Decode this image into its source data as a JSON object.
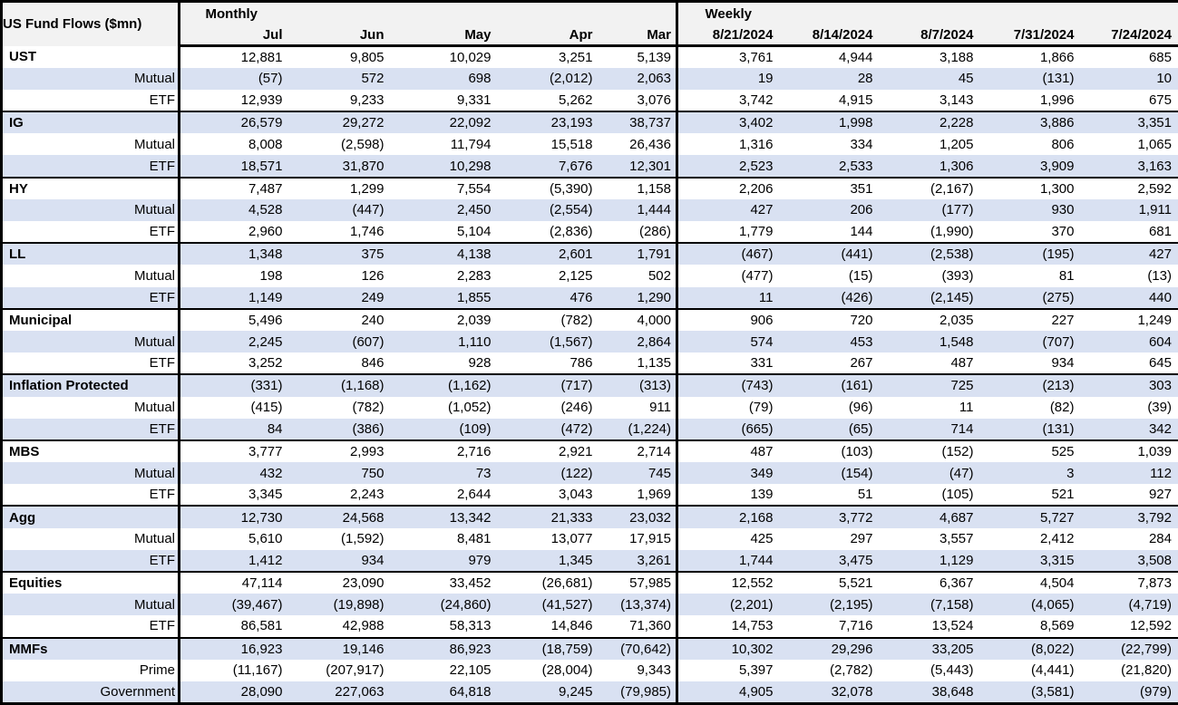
{
  "colors": {
    "row_alt": "#d9e1f2",
    "header_bg": "#f2f2f2",
    "border": "#000000",
    "text": "#000000"
  },
  "chart_data": {
    "type": "table",
    "title": "US Fund Flows ($mn)",
    "column_groups": [
      {
        "label": "Monthly",
        "columns": [
          "Jul",
          "Jun",
          "May",
          "Apr",
          "Mar"
        ]
      },
      {
        "label": "Weekly",
        "columns": [
          "8/21/2024",
          "8/14/2024",
          "8/7/2024",
          "7/31/2024",
          "7/24/2024"
        ]
      }
    ],
    "rows": [
      {
        "label": "UST",
        "level": "group",
        "values": [
          "12,881",
          "9,805",
          "10,029",
          "3,251",
          "5,139",
          "3,761",
          "4,944",
          "3,188",
          "1,866",
          "685"
        ]
      },
      {
        "label": "Mutual",
        "level": "sub",
        "values": [
          "(57)",
          "572",
          "698",
          "(2,012)",
          "2,063",
          "19",
          "28",
          "45",
          "(131)",
          "10"
        ]
      },
      {
        "label": "ETF",
        "level": "sub",
        "values": [
          "12,939",
          "9,233",
          "9,331",
          "5,262",
          "3,076",
          "3,742",
          "4,915",
          "3,143",
          "1,996",
          "675"
        ]
      },
      {
        "label": "IG",
        "level": "group",
        "values": [
          "26,579",
          "29,272",
          "22,092",
          "23,193",
          "38,737",
          "3,402",
          "1,998",
          "2,228",
          "3,886",
          "3,351"
        ]
      },
      {
        "label": "Mutual",
        "level": "sub",
        "values": [
          "8,008",
          "(2,598)",
          "11,794",
          "15,518",
          "26,436",
          "1,316",
          "334",
          "1,205",
          "806",
          "1,065"
        ]
      },
      {
        "label": "ETF",
        "level": "sub",
        "values": [
          "18,571",
          "31,870",
          "10,298",
          "7,676",
          "12,301",
          "2,523",
          "2,533",
          "1,306",
          "3,909",
          "3,163"
        ]
      },
      {
        "label": "HY",
        "level": "group",
        "values": [
          "7,487",
          "1,299",
          "7,554",
          "(5,390)",
          "1,158",
          "2,206",
          "351",
          "(2,167)",
          "1,300",
          "2,592"
        ]
      },
      {
        "label": "Mutual",
        "level": "sub",
        "values": [
          "4,528",
          "(447)",
          "2,450",
          "(2,554)",
          "1,444",
          "427",
          "206",
          "(177)",
          "930",
          "1,911"
        ]
      },
      {
        "label": "ETF",
        "level": "sub",
        "values": [
          "2,960",
          "1,746",
          "5,104",
          "(2,836)",
          "(286)",
          "1,779",
          "144",
          "(1,990)",
          "370",
          "681"
        ]
      },
      {
        "label": "LL",
        "level": "group",
        "values": [
          "1,348",
          "375",
          "4,138",
          "2,601",
          "1,791",
          "(467)",
          "(441)",
          "(2,538)",
          "(195)",
          "427"
        ]
      },
      {
        "label": "Mutual",
        "level": "sub",
        "values": [
          "198",
          "126",
          "2,283",
          "2,125",
          "502",
          "(477)",
          "(15)",
          "(393)",
          "81",
          "(13)"
        ]
      },
      {
        "label": "ETF",
        "level": "sub",
        "values": [
          "1,149",
          "249",
          "1,855",
          "476",
          "1,290",
          "11",
          "(426)",
          "(2,145)",
          "(275)",
          "440"
        ]
      },
      {
        "label": "Municipal",
        "level": "group",
        "values": [
          "5,496",
          "240",
          "2,039",
          "(782)",
          "4,000",
          "906",
          "720",
          "2,035",
          "227",
          "1,249"
        ]
      },
      {
        "label": "Mutual",
        "level": "sub",
        "values": [
          "2,245",
          "(607)",
          "1,110",
          "(1,567)",
          "2,864",
          "574",
          "453",
          "1,548",
          "(707)",
          "604"
        ]
      },
      {
        "label": "ETF",
        "level": "sub",
        "values": [
          "3,252",
          "846",
          "928",
          "786",
          "1,135",
          "331",
          "267",
          "487",
          "934",
          "645"
        ]
      },
      {
        "label": "Inflation Protected",
        "level": "group",
        "values": [
          "(331)",
          "(1,168)",
          "(1,162)",
          "(717)",
          "(313)",
          "(743)",
          "(161)",
          "725",
          "(213)",
          "303"
        ]
      },
      {
        "label": "Mutual",
        "level": "sub",
        "values": [
          "(415)",
          "(782)",
          "(1,052)",
          "(246)",
          "911",
          "(79)",
          "(96)",
          "11",
          "(82)",
          "(39)"
        ]
      },
      {
        "label": "ETF",
        "level": "sub",
        "values": [
          "84",
          "(386)",
          "(109)",
          "(472)",
          "(1,224)",
          "(665)",
          "(65)",
          "714",
          "(131)",
          "342"
        ]
      },
      {
        "label": "MBS",
        "level": "group",
        "values": [
          "3,777",
          "2,993",
          "2,716",
          "2,921",
          "2,714",
          "487",
          "(103)",
          "(152)",
          "525",
          "1,039"
        ]
      },
      {
        "label": "Mutual",
        "level": "sub",
        "values": [
          "432",
          "750",
          "73",
          "(122)",
          "745",
          "349",
          "(154)",
          "(47)",
          "3",
          "112"
        ]
      },
      {
        "label": "ETF",
        "level": "sub",
        "values": [
          "3,345",
          "2,243",
          "2,644",
          "3,043",
          "1,969",
          "139",
          "51",
          "(105)",
          "521",
          "927"
        ]
      },
      {
        "label": "Agg",
        "level": "group",
        "values": [
          "12,730",
          "24,568",
          "13,342",
          "21,333",
          "23,032",
          "2,168",
          "3,772",
          "4,687",
          "5,727",
          "3,792"
        ]
      },
      {
        "label": "Mutual",
        "level": "sub",
        "values": [
          "5,610",
          "(1,592)",
          "8,481",
          "13,077",
          "17,915",
          "425",
          "297",
          "3,557",
          "2,412",
          "284"
        ]
      },
      {
        "label": "ETF",
        "level": "sub",
        "values": [
          "1,412",
          "934",
          "979",
          "1,345",
          "3,261",
          "1,744",
          "3,475",
          "1,129",
          "3,315",
          "3,508"
        ]
      },
      {
        "label": "Equities",
        "level": "group",
        "values": [
          "47,114",
          "23,090",
          "33,452",
          "(26,681)",
          "57,985",
          "12,552",
          "5,521",
          "6,367",
          "4,504",
          "7,873"
        ]
      },
      {
        "label": "Mutual",
        "level": "sub",
        "values": [
          "(39,467)",
          "(19,898)",
          "(24,860)",
          "(41,527)",
          "(13,374)",
          "(2,201)",
          "(2,195)",
          "(7,158)",
          "(4,065)",
          "(4,719)"
        ]
      },
      {
        "label": "ETF",
        "level": "sub",
        "values": [
          "86,581",
          "42,988",
          "58,313",
          "14,846",
          "71,360",
          "14,753",
          "7,716",
          "13,524",
          "8,569",
          "12,592"
        ]
      },
      {
        "label": "MMFs",
        "level": "group",
        "values": [
          "16,923",
          "19,146",
          "86,923",
          "(18,759)",
          "(70,642)",
          "10,302",
          "29,296",
          "33,205",
          "(8,022)",
          "(22,799)"
        ]
      },
      {
        "label": "Prime",
        "level": "sub",
        "values": [
          "(11,167)",
          "(207,917)",
          "22,105",
          "(28,004)",
          "9,343",
          "5,397",
          "(2,782)",
          "(5,443)",
          "(4,441)",
          "(21,820)"
        ]
      },
      {
        "label": "Government",
        "level": "sub",
        "values": [
          "28,090",
          "227,063",
          "64,818",
          "9,245",
          "(79,985)",
          "4,905",
          "32,078",
          "38,648",
          "(3,581)",
          "(979)"
        ]
      }
    ]
  }
}
